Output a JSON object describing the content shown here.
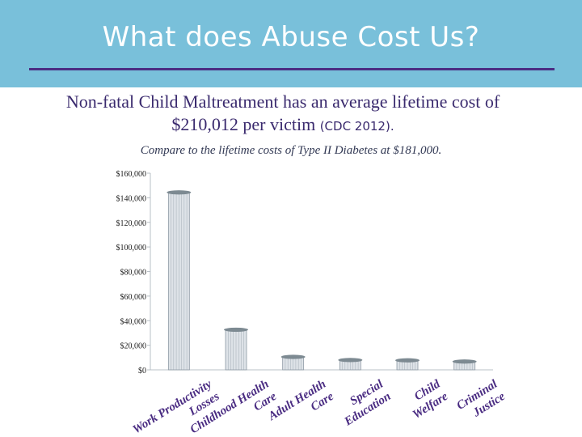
{
  "slide": {
    "title": "What does Abuse Cost Us?",
    "subtitle_main": "Non-fatal Child Maltreatment has an average lifetime cost of $210,012 per victim",
    "subtitle_source": "(CDC 2012).",
    "compare_note": "Compare to the lifetime costs of Type II Diabetes at $181,000."
  },
  "colors": {
    "header_band": "#79c0da",
    "title_rule": "#4b2d83",
    "bar_fill": "#dde2e7",
    "bar_stroke": "#8d98a3",
    "bar_cap": "#7d8a92",
    "category_text": "#4a2c82"
  },
  "chart_data": {
    "type": "bar",
    "title": "",
    "xlabel": "",
    "ylabel": "",
    "categories": [
      "Work Productivity Losses",
      "Childhood Health Care",
      "Adult Health Care",
      "Special Education",
      "Child Welfare",
      "Criminal Justice"
    ],
    "values": [
      144360,
      32648,
      10530,
      7999,
      7728,
      6747
    ],
    "ylim": [
      0,
      160000
    ],
    "yticks": [
      0,
      20000,
      40000,
      60000,
      80000,
      100000,
      120000,
      140000,
      160000
    ],
    "ytick_labels": [
      "$0",
      "$20,000",
      "$40,000",
      "$60,000",
      "$80,000",
      "$100,000",
      "$120,000",
      "$140,000",
      "$160,000"
    ],
    "grid": false,
    "legend": "none"
  }
}
